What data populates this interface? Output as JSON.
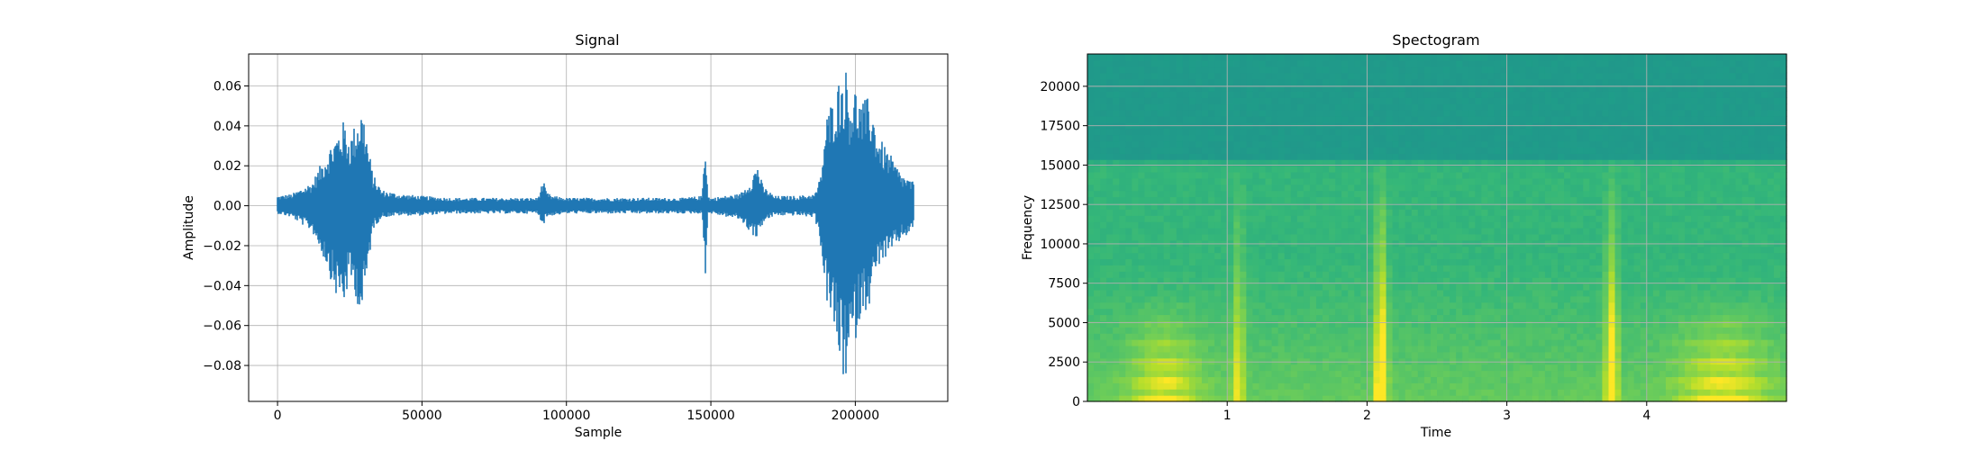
{
  "chart_data": [
    {
      "type": "line",
      "title": "Signal",
      "xlabel": "Sample",
      "ylabel": "Amplitude",
      "xlim": [
        -10000,
        232000
      ],
      "ylim": [
        -0.098,
        0.076
      ],
      "xticks": [
        0,
        50000,
        100000,
        150000,
        200000
      ],
      "xtick_labels": [
        "0",
        "50000",
        "100000",
        "150000",
        "200000"
      ],
      "yticks": [
        -0.08,
        -0.06,
        -0.04,
        -0.02,
        0.0,
        0.02,
        0.04,
        0.06
      ],
      "ytick_labels": [
        "−0.08",
        "−0.06",
        "−0.04",
        "−0.02",
        "0.00",
        "0.02",
        "0.04",
        "0.06"
      ],
      "grid": true,
      "color": "#1f77b4",
      "sample_count": 220500,
      "envelope": {
        "x": [
          0,
          5000,
          12000,
          17000,
          20000,
          23000,
          25000,
          27000,
          29000,
          30000,
          31000,
          33000,
          36000,
          42000,
          50000,
          60000,
          80000,
          90000,
          92000,
          93000,
          95000,
          100000,
          120000,
          140000,
          147000,
          148000,
          149000,
          150000,
          160000,
          164000,
          166000,
          168000,
          172000,
          180000,
          186000,
          188000,
          190000,
          193000,
          195000,
          197000,
          198000,
          200000,
          202000,
          205000,
          208000,
          212000,
          216000,
          220000
        ],
        "upper": [
          0.005,
          0.006,
          0.012,
          0.027,
          0.035,
          0.043,
          0.034,
          0.042,
          0.049,
          0.045,
          0.034,
          0.016,
          0.008,
          0.006,
          0.005,
          0.004,
          0.004,
          0.004,
          0.013,
          0.007,
          0.005,
          0.004,
          0.004,
          0.004,
          0.005,
          0.038,
          0.005,
          0.004,
          0.006,
          0.013,
          0.022,
          0.01,
          0.005,
          0.005,
          0.006,
          0.015,
          0.045,
          0.058,
          0.066,
          0.069,
          0.055,
          0.06,
          0.052,
          0.055,
          0.035,
          0.026,
          0.016,
          0.012
        ],
        "lower": [
          -0.004,
          -0.006,
          -0.013,
          -0.03,
          -0.045,
          -0.05,
          -0.038,
          -0.045,
          -0.058,
          -0.048,
          -0.036,
          -0.012,
          -0.006,
          -0.005,
          -0.005,
          -0.004,
          -0.004,
          -0.004,
          -0.01,
          -0.006,
          -0.005,
          -0.004,
          -0.004,
          -0.004,
          -0.004,
          -0.038,
          -0.004,
          -0.004,
          -0.007,
          -0.014,
          -0.017,
          -0.009,
          -0.005,
          -0.005,
          -0.006,
          -0.02,
          -0.048,
          -0.066,
          -0.084,
          -0.09,
          -0.078,
          -0.068,
          -0.055,
          -0.05,
          -0.03,
          -0.025,
          -0.017,
          -0.013
        ]
      }
    },
    {
      "type": "heatmap",
      "title": "Spectogram",
      "xlabel": "Time",
      "ylabel": "Frequency",
      "xlim": [
        0.0,
        5.0
      ],
      "ylim": [
        0,
        22050
      ],
      "xticks": [
        1,
        2,
        3,
        4
      ],
      "xtick_labels": [
        "1",
        "2",
        "3",
        "4"
      ],
      "yticks": [
        0,
        2500,
        5000,
        7500,
        10000,
        12500,
        15000,
        17500,
        20000
      ],
      "ytick_labels": [
        "0",
        "2500",
        "5000",
        "7500",
        "10000",
        "12500",
        "15000",
        "17500",
        "20000"
      ],
      "grid": true,
      "colormap": "viridis",
      "cutoff_frequency": 15500,
      "time_bins": 110,
      "freq_bins": 56
    }
  ]
}
